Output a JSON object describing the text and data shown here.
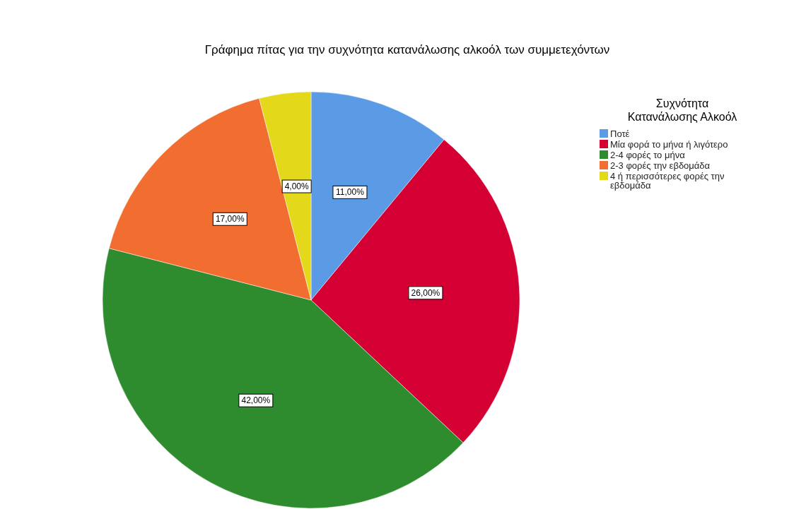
{
  "chart_data": {
    "type": "pie",
    "title": "Γράφημα πίτας για την συχνότητα κατανάλωσης αλκοόλ των συμμετεχόντων",
    "legend_title": "Συχνότητα Κατανάλωσης Αλκοόλ",
    "categories": [
      "Ποτέ",
      "Μία φορά το μήνα ή λιγότερο",
      "2-4 φορές το μήνα",
      "2-3 φορές την εβδομάδα",
      "4 ή περισσότερες φορές την εβδομάδα"
    ],
    "values": [
      11,
      26,
      42,
      17,
      4
    ],
    "value_labels": [
      "11,00%",
      "26,00%",
      "42,00%",
      "17,00%",
      "4,00%"
    ],
    "colors": [
      "#5b9be6",
      "#d40033",
      "#2e8b2e",
      "#f26e30",
      "#e3d81a"
    ],
    "legend": "right"
  }
}
